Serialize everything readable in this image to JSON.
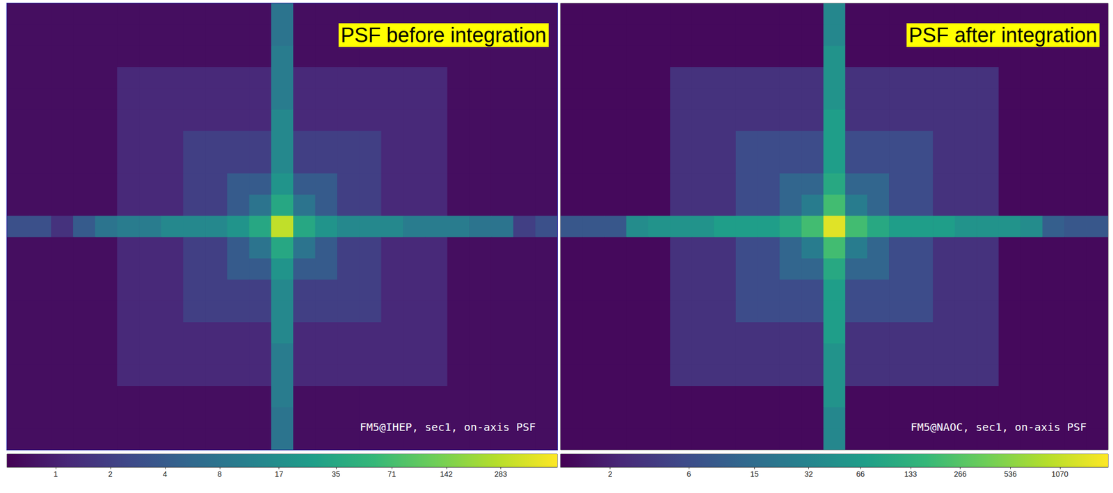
{
  "chart_data": [
    {
      "type": "heatmap",
      "title": "PSF before integration",
      "annotation": "FM5@IHEP, sec1, on-axis PSF",
      "log": true,
      "tick_labels": false,
      "colorbar": {
        "range": [
          0.54,
          580
        ],
        "ticks": [
          1,
          2,
          4,
          8,
          17,
          35,
          71,
          142,
          283
        ]
      },
      "cells": [
        [
          0.7,
          0.7,
          0.7,
          0.7,
          0.7,
          0.7,
          0.7,
          0.7,
          0.7,
          0.7,
          0.7,
          0.7,
          8,
          0.7,
          0.7,
          0.7,
          0.7,
          0.7,
          0.7,
          0.7,
          0.7,
          0.7,
          0.7,
          0.7,
          0.7
        ],
        [
          0.7,
          0.7,
          0.7,
          0.7,
          0.7,
          0.7,
          0.7,
          0.7,
          0.7,
          0.7,
          0.7,
          0.7,
          8,
          0.7,
          0.7,
          0.7,
          0.7,
          0.7,
          0.7,
          0.7,
          0.7,
          0.7,
          0.7,
          0.7,
          0.7
        ],
        [
          0.7,
          0.7,
          0.7,
          0.7,
          0.7,
          0.7,
          0.7,
          0.7,
          0.7,
          0.7,
          0.7,
          0.7,
          10,
          0.7,
          0.7,
          0.7,
          0.7,
          0.7,
          0.7,
          0.7,
          0.7,
          0.7,
          0.7,
          0.7,
          0.7
        ],
        [
          0.7,
          0.7,
          0.7,
          0.7,
          0.7,
          1.2,
          1.2,
          1.2,
          1.2,
          1.2,
          1.2,
          1.2,
          10,
          1.2,
          1.2,
          1.2,
          1.2,
          1.2,
          1.2,
          1.2,
          0.7,
          0.7,
          0.7,
          0.7,
          0.7
        ],
        [
          0.7,
          0.7,
          0.7,
          0.7,
          0.7,
          1.2,
          1.2,
          1.2,
          1.2,
          1.2,
          1.2,
          1.2,
          10,
          1.2,
          1.2,
          1.2,
          1.2,
          1.2,
          1.2,
          1.2,
          0.7,
          0.7,
          0.7,
          0.7,
          0.7
        ],
        [
          0.7,
          0.7,
          0.7,
          0.7,
          0.7,
          1.2,
          1.2,
          1.2,
          1.2,
          1.2,
          1.2,
          1.2,
          14,
          1.2,
          1.2,
          1.2,
          1.2,
          1.2,
          1.2,
          1.2,
          0.7,
          0.7,
          0.7,
          0.7,
          0.7
        ],
        [
          0.7,
          0.7,
          0.7,
          0.7,
          0.7,
          1.2,
          1.2,
          1.2,
          2,
          2,
          2,
          2,
          14,
          2,
          2,
          2,
          2,
          1.2,
          1.2,
          1.2,
          0.7,
          0.7,
          0.7,
          0.7,
          0.7
        ],
        [
          0.7,
          0.7,
          0.7,
          0.7,
          0.7,
          1.2,
          1.2,
          1.2,
          2,
          2,
          2,
          2,
          14,
          2,
          2,
          2,
          2,
          1.2,
          1.2,
          1.2,
          0.7,
          0.7,
          0.7,
          0.7,
          0.7
        ],
        [
          0.7,
          0.7,
          0.7,
          0.7,
          0.7,
          1.2,
          1.2,
          1.2,
          2,
          2,
          4,
          4,
          20,
          4,
          4,
          2,
          2,
          1.2,
          1.2,
          1.2,
          0.7,
          0.7,
          0.7,
          0.7,
          0.7
        ],
        [
          0.7,
          0.7,
          0.7,
          0.7,
          0.7,
          1.2,
          1.2,
          1.2,
          2,
          2,
          4,
          8,
          35,
          8,
          4,
          2,
          2,
          1.2,
          1.2,
          1.2,
          0.7,
          0.7,
          0.7,
          0.7,
          0.7
        ],
        [
          3,
          3,
          1.5,
          4,
          8,
          10,
          10,
          14,
          14,
          14,
          20,
          35,
          300,
          35,
          20,
          14,
          14,
          14,
          10,
          10,
          10,
          8,
          8,
          2,
          3
        ],
        [
          0.7,
          0.7,
          0.7,
          0.7,
          0.7,
          1.2,
          1.2,
          1.2,
          2,
          2,
          4,
          8,
          35,
          8,
          4,
          2,
          2,
          1.2,
          1.2,
          1.2,
          0.7,
          0.7,
          0.7,
          0.7,
          0.7
        ],
        [
          0.7,
          0.7,
          0.7,
          0.7,
          0.7,
          1.2,
          1.2,
          1.2,
          2,
          2,
          4,
          4,
          20,
          4,
          4,
          2,
          2,
          1.2,
          1.2,
          1.2,
          0.7,
          0.7,
          0.7,
          0.7,
          0.7
        ],
        [
          0.7,
          0.7,
          0.7,
          0.7,
          0.7,
          1.2,
          1.2,
          1.2,
          2,
          2,
          2,
          2,
          14,
          2,
          2,
          2,
          2,
          1.2,
          1.2,
          1.2,
          0.7,
          0.7,
          0.7,
          0.7,
          0.7
        ],
        [
          0.7,
          0.7,
          0.7,
          0.7,
          0.7,
          1.2,
          1.2,
          1.2,
          2,
          2,
          2,
          2,
          14,
          2,
          2,
          2,
          2,
          1.2,
          1.2,
          1.2,
          0.7,
          0.7,
          0.7,
          0.7,
          0.7
        ],
        [
          0.7,
          0.7,
          0.7,
          0.7,
          0.7,
          1.2,
          1.2,
          1.2,
          1.2,
          1.2,
          1.2,
          1.2,
          14,
          1.2,
          1.2,
          1.2,
          1.2,
          1.2,
          1.2,
          1.2,
          0.7,
          0.7,
          0.7,
          0.7,
          0.7
        ],
        [
          0.7,
          0.7,
          0.7,
          0.7,
          0.7,
          1.2,
          1.2,
          1.2,
          1.2,
          1.2,
          1.2,
          1.2,
          10,
          1.2,
          1.2,
          1.2,
          1.2,
          1.2,
          1.2,
          1.2,
          0.7,
          0.7,
          0.7,
          0.7,
          0.7
        ],
        [
          0.7,
          0.7,
          0.7,
          0.7,
          0.7,
          1.2,
          1.2,
          1.2,
          1.2,
          1.2,
          1.2,
          1.2,
          10,
          1.2,
          1.2,
          1.2,
          1.2,
          1.2,
          1.2,
          1.2,
          0.7,
          0.7,
          0.7,
          0.7,
          0.7
        ],
        [
          0.7,
          0.7,
          0.7,
          0.7,
          0.7,
          0.7,
          0.7,
          0.7,
          0.7,
          0.7,
          0.7,
          0.7,
          10,
          0.7,
          0.7,
          0.7,
          0.7,
          0.7,
          0.7,
          0.7,
          0.7,
          0.7,
          0.7,
          0.7,
          0.7
        ],
        [
          0.7,
          0.7,
          0.7,
          0.7,
          0.7,
          0.7,
          0.7,
          0.7,
          0.7,
          0.7,
          0.7,
          0.7,
          8,
          0.7,
          0.7,
          0.7,
          0.7,
          0.7,
          0.7,
          0.7,
          0.7,
          0.7,
          0.7,
          0.7,
          0.7
        ],
        [
          0.7,
          0.7,
          0.7,
          0.7,
          0.7,
          0.7,
          0.7,
          0.7,
          0.7,
          0.7,
          0.7,
          0.7,
          8,
          0.7,
          0.7,
          0.7,
          0.7,
          0.7,
          0.7,
          0.7,
          0.7,
          0.7,
          0.7,
          0.7,
          0.7
        ]
      ]
    },
    {
      "type": "heatmap",
      "title": "PSF after integration",
      "annotation": "FM5@NAOC, sec1, on-axis PSF",
      "log": true,
      "tick_labels": false,
      "colorbar": {
        "range": [
          1,
          2100
        ],
        "ticks": [
          2,
          6,
          15,
          32,
          66,
          133,
          266,
          536,
          1070
        ]
      },
      "cells": [
        [
          1.2,
          1.2,
          1.2,
          1.2,
          1.2,
          1.2,
          1.2,
          1.2,
          1.2,
          1.2,
          1.2,
          1.2,
          35,
          1.2,
          1.2,
          1.2,
          1.2,
          1.2,
          1.2,
          1.2,
          1.2,
          1.2,
          1.2,
          1.2,
          1.2
        ],
        [
          1.2,
          1.2,
          1.2,
          1.2,
          1.2,
          1.2,
          1.2,
          1.2,
          1.2,
          1.2,
          1.2,
          1.2,
          35,
          1.2,
          1.2,
          1.2,
          1.2,
          1.2,
          1.2,
          1.2,
          1.2,
          1.2,
          1.2,
          1.2,
          1.2
        ],
        [
          1.2,
          1.2,
          1.2,
          1.2,
          1.2,
          1.2,
          1.2,
          1.2,
          1.2,
          1.2,
          1.2,
          1.2,
          50,
          1.2,
          1.2,
          1.2,
          1.2,
          1.2,
          1.2,
          1.2,
          1.2,
          1.2,
          1.2,
          1.2,
          1.2
        ],
        [
          1.2,
          1.2,
          1.2,
          1.2,
          1.2,
          3,
          3,
          3,
          3,
          3,
          3,
          3,
          50,
          3,
          3,
          3,
          3,
          3,
          3,
          3,
          1.2,
          1.2,
          1.2,
          1.2,
          1.2
        ],
        [
          1.2,
          1.2,
          1.2,
          1.2,
          1.2,
          3,
          3,
          3,
          3,
          3,
          3,
          3,
          50,
          3,
          3,
          3,
          3,
          3,
          3,
          3,
          1.2,
          1.2,
          1.2,
          1.2,
          1.2
        ],
        [
          1.2,
          1.2,
          1.2,
          1.2,
          1.2,
          3,
          3,
          3,
          3,
          3,
          3,
          3,
          70,
          3,
          3,
          3,
          3,
          3,
          3,
          3,
          1.2,
          1.2,
          1.2,
          1.2,
          1.2
        ],
        [
          1.2,
          1.2,
          1.2,
          1.2,
          1.2,
          3,
          3,
          3,
          6,
          6,
          6,
          6,
          70,
          6,
          6,
          6,
          6,
          3,
          3,
          3,
          1.2,
          1.2,
          1.2,
          1.2,
          1.2
        ],
        [
          1.2,
          1.2,
          1.2,
          1.2,
          1.2,
          3,
          3,
          3,
          6,
          6,
          6,
          6,
          70,
          6,
          6,
          6,
          6,
          3,
          3,
          3,
          1.2,
          1.2,
          1.2,
          1.2,
          1.2
        ],
        [
          1.2,
          1.2,
          1.2,
          1.2,
          1.2,
          3,
          3,
          3,
          6,
          6,
          12,
          12,
          100,
          12,
          12,
          6,
          6,
          3,
          3,
          3,
          1.2,
          1.2,
          1.2,
          1.2,
          1.2
        ],
        [
          1.2,
          1.2,
          1.2,
          1.2,
          1.2,
          3,
          3,
          3,
          6,
          6,
          12,
          25,
          200,
          25,
          12,
          6,
          6,
          3,
          3,
          3,
          1.2,
          1.2,
          1.2,
          1.2,
          1.2
        ],
        [
          8,
          8,
          8,
          40,
          50,
          50,
          50,
          70,
          70,
          70,
          100,
          200,
          1500,
          200,
          100,
          70,
          70,
          70,
          50,
          50,
          50,
          40,
          10,
          8,
          8
        ],
        [
          1.2,
          1.2,
          1.2,
          1.2,
          1.2,
          3,
          3,
          3,
          6,
          6,
          12,
          25,
          200,
          25,
          12,
          6,
          6,
          3,
          3,
          3,
          1.2,
          1.2,
          1.2,
          1.2,
          1.2
        ],
        [
          1.2,
          1.2,
          1.2,
          1.2,
          1.2,
          3,
          3,
          3,
          6,
          6,
          12,
          12,
          100,
          12,
          12,
          6,
          6,
          3,
          3,
          3,
          1.2,
          1.2,
          1.2,
          1.2,
          1.2
        ],
        [
          1.2,
          1.2,
          1.2,
          1.2,
          1.2,
          3,
          3,
          3,
          6,
          6,
          6,
          6,
          70,
          6,
          6,
          6,
          6,
          3,
          3,
          3,
          1.2,
          1.2,
          1.2,
          1.2,
          1.2
        ],
        [
          1.2,
          1.2,
          1.2,
          1.2,
          1.2,
          3,
          3,
          3,
          6,
          6,
          6,
          6,
          70,
          6,
          6,
          6,
          6,
          3,
          3,
          3,
          1.2,
          1.2,
          1.2,
          1.2,
          1.2
        ],
        [
          1.2,
          1.2,
          1.2,
          1.2,
          1.2,
          3,
          3,
          3,
          3,
          3,
          3,
          3,
          70,
          3,
          3,
          3,
          3,
          3,
          3,
          3,
          1.2,
          1.2,
          1.2,
          1.2,
          1.2
        ],
        [
          1.2,
          1.2,
          1.2,
          1.2,
          1.2,
          3,
          3,
          3,
          3,
          3,
          3,
          3,
          50,
          3,
          3,
          3,
          3,
          3,
          3,
          3,
          1.2,
          1.2,
          1.2,
          1.2,
          1.2
        ],
        [
          1.2,
          1.2,
          1.2,
          1.2,
          1.2,
          3,
          3,
          3,
          3,
          3,
          3,
          3,
          50,
          3,
          3,
          3,
          3,
          3,
          3,
          3,
          1.2,
          1.2,
          1.2,
          1.2,
          1.2
        ],
        [
          1.2,
          1.2,
          1.2,
          1.2,
          1.2,
          1.2,
          1.2,
          1.2,
          1.2,
          1.2,
          1.2,
          1.2,
          50,
          1.2,
          1.2,
          1.2,
          1.2,
          1.2,
          1.2,
          1.2,
          1.2,
          1.2,
          1.2,
          1.2,
          1.2
        ],
        [
          1.2,
          1.2,
          1.2,
          1.2,
          1.2,
          1.2,
          1.2,
          1.2,
          1.2,
          1.2,
          1.2,
          1.2,
          35,
          1.2,
          1.2,
          1.2,
          1.2,
          1.2,
          1.2,
          1.2,
          1.2,
          1.2,
          1.2,
          1.2,
          1.2
        ],
        [
          1.2,
          1.2,
          1.2,
          1.2,
          1.2,
          1.2,
          1.2,
          1.2,
          1.2,
          1.2,
          1.2,
          1.2,
          35,
          1.2,
          1.2,
          1.2,
          1.2,
          1.2,
          1.2,
          1.2,
          1.2,
          1.2,
          1.2,
          1.2,
          1.2
        ]
      ]
    }
  ]
}
